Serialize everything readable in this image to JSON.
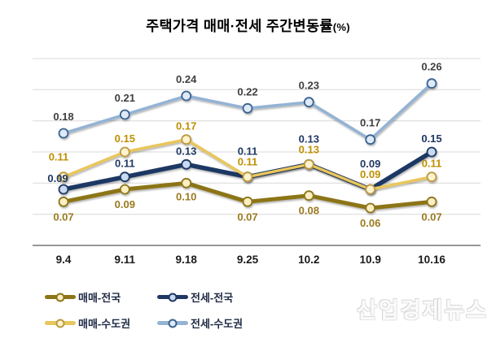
{
  "title": {
    "main": "주택가격 매매·전세 주간변동률",
    "unit": "(%)"
  },
  "watermark": "산업경제뉴스",
  "chart_data": {
    "type": "line",
    "title": "주택가격 매매·전세 주간변동률(%)",
    "categories": [
      "9.4",
      "9.11",
      "9.18",
      "9.25",
      "10.2",
      "10.9",
      "10.16"
    ],
    "series": [
      {
        "name": "매매-전국",
        "values": [
          0.07,
          0.09,
          0.1,
          0.07,
          0.08,
          0.06,
          0.07
        ],
        "color": "#8C7419",
        "marker_fill": "#FCEEC3",
        "marker_stroke": "#8C7419",
        "label_color": "#9A7A20",
        "label_dy": [
          23,
          23,
          21,
          23,
          23,
          23,
          23
        ],
        "label_dx": [
          0,
          0,
          0,
          0,
          0,
          0,
          0
        ]
      },
      {
        "name": "전세-전국",
        "values": [
          0.09,
          0.11,
          0.13,
          0.11,
          0.13,
          0.09,
          0.15
        ],
        "color": "#1F3864",
        "marker_fill": "#C9DAF1",
        "marker_stroke": "#1F3864",
        "label_color": "#1F3864",
        "label_dy": [
          -9,
          -12,
          -12,
          -27,
          -27,
          -27,
          -12
        ],
        "label_dx": [
          -7,
          0,
          0,
          0,
          0,
          0,
          0
        ]
      },
      {
        "name": "매매-수도권",
        "values": [
          0.11,
          0.15,
          0.17,
          0.11,
          0.13,
          0.09,
          0.11
        ],
        "color": "#E9C65C",
        "marker_fill": "#FDF3CF",
        "marker_stroke": "#BD9940",
        "label_color": "#BF9000",
        "label_dy": [
          -20,
          -12,
          -12,
          -14,
          -14,
          -14,
          -12
        ],
        "label_dx": [
          -6,
          0,
          0,
          0,
          0,
          0,
          0
        ]
      },
      {
        "name": "전세-수도권",
        "values": [
          0.18,
          0.21,
          0.24,
          0.22,
          0.23,
          0.17,
          0.26
        ],
        "color": "#93B3D5",
        "marker_fill": "#DEEAF8",
        "marker_stroke": "#3A628F",
        "label_color": "#404040",
        "label_dy": [
          -16,
          -16,
          -16,
          -16,
          -16,
          -16,
          -16
        ],
        "label_dx": [
          0,
          0,
          0,
          0,
          0,
          0,
          0
        ]
      }
    ],
    "ylim": [
      0,
      0.3
    ],
    "grid_step": 0.05,
    "grid": true,
    "grid_color": "#D9D9D9",
    "axis_color": "#595959",
    "tick_label_color": "#1A1A1A",
    "legend_position": "bottom-left",
    "xlabel": "",
    "ylabel": ""
  }
}
